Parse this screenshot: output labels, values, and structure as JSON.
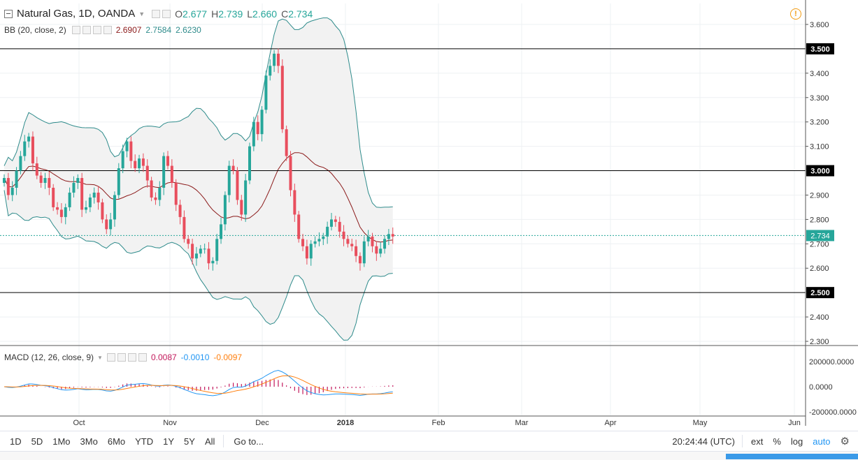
{
  "symbol": {
    "title": "Natural Gas, 1D, OANDA",
    "caret": "▼"
  },
  "ohlc": {
    "o_label": "O",
    "o": "2.677",
    "h_label": "H",
    "h": "2.739",
    "l_label": "L",
    "l": "2.660",
    "c_label": "C",
    "c": "2.734"
  },
  "bb_legend": {
    "name": "BB (20, close, 2)",
    "basis": "2.6907",
    "upper": "2.7584",
    "lower": "2.6230"
  },
  "macd_legend": {
    "name": "MACD (12, 26, close, 9)",
    "histogram": "0.0087",
    "macd": "-0.0010",
    "signal": "-0.0097"
  },
  "colors": {
    "up": "#26a69a",
    "down": "#e84e5d",
    "bb_fill": "#f2f2f2",
    "bb_band": "#2e8b8b",
    "bb_basis": "#8b1a1a",
    "macd_line": "#2196f3",
    "signal_line": "#ff7f0e",
    "hist": "#c2185b",
    "price_line": "#26a69a"
  },
  "toolbar": {
    "ranges": [
      "1D",
      "5D",
      "1Mo",
      "3Mo",
      "6Mo",
      "YTD",
      "1Y",
      "5Y",
      "All"
    ],
    "goto": "Go to...",
    "time": "20:24:44 (UTC)",
    "ext": "ext",
    "percent": "%",
    "log": "log",
    "auto": "auto"
  },
  "icons": {
    "gear": "gear-icon",
    "warning": "warning-icon",
    "collapse": "collapse-icon"
  },
  "chart_data": {
    "type": "candlestick",
    "title": "Natural Gas, 1D, OANDA",
    "price_axis": {
      "ticks": [
        "3.600",
        "3.400",
        "3.300",
        "3.200",
        "3.100",
        "2.900",
        "2.800",
        "2.700",
        "2.600",
        "2.400",
        "2.300"
      ],
      "range": [
        2.28,
        3.68
      ]
    },
    "time_axis": {
      "labels": [
        "Oct",
        "Nov",
        "Dec",
        "2018",
        "Feb",
        "Mar",
        "Apr",
        "May",
        "Jun"
      ]
    },
    "horizontal_levels": [
      "3.500",
      "3.000",
      "2.500"
    ],
    "last_price": "2.734",
    "close_series": [
      2.97,
      2.9,
      2.93,
      3.0,
      3.06,
      3.12,
      3.14,
      3.03,
      2.98,
      2.95,
      2.97,
      2.93,
      2.85,
      2.84,
      2.81,
      2.85,
      2.91,
      2.95,
      2.97,
      2.84,
      2.85,
      2.89,
      2.91,
      2.87,
      2.8,
      2.76,
      2.8,
      2.9,
      3.01,
      3.08,
      3.12,
      3.04,
      3.01,
      3.05,
      3.02,
      2.96,
      2.89,
      2.88,
      2.93,
      3.06,
      3.02,
      2.95,
      2.86,
      2.81,
      2.72,
      2.7,
      2.64,
      2.66,
      2.68,
      2.68,
      2.62,
      2.63,
      2.72,
      2.78,
      2.9,
      3.02,
      3.0,
      2.88,
      2.82,
      2.96,
      3.1,
      3.2,
      3.15,
      3.25,
      3.39,
      3.43,
      3.48,
      3.43,
      3.17,
      3.06,
      2.92,
      2.82,
      2.72,
      2.69,
      2.64,
      2.7,
      2.71,
      2.72,
      2.73,
      2.77,
      2.8,
      2.79,
      2.75,
      2.72,
      2.7,
      2.69,
      2.65,
      2.62,
      2.71,
      2.73,
      2.69,
      2.66,
      2.68,
      2.72,
      2.74,
      2.73
    ],
    "bb": {
      "period": 20,
      "basis": "2.6907",
      "upper": "2.7584",
      "lower": "2.6230"
    },
    "macd": {
      "fast": 12,
      "slow": 26,
      "signal": 9,
      "histogram": "0.0087",
      "macd": "-0.0010",
      "signal_value": "-0.0097",
      "axis_ticks": [
        "200000.0000",
        "0.0000",
        "-200000.0000"
      ]
    }
  }
}
